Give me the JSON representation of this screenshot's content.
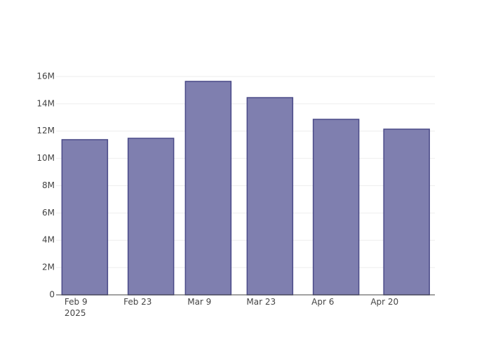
{
  "chart_data": {
    "type": "bar",
    "x": [
      "2025-02-11",
      "2025-02-26",
      "2025-03-11",
      "2025-03-25",
      "2025-04-09",
      "2025-04-25"
    ],
    "values": [
      11370000,
      11470000,
      15640000,
      14450000,
      12860000,
      12140000
    ],
    "color": "#7f7faf",
    "xlim": [
      "2025-02-04T12:00",
      "2025-05-01T10:00"
    ],
    "xticks": [
      {
        "value": "2025-02-09",
        "label": "Feb 9\n2025"
      },
      {
        "value": "2025-02-23",
        "label": "Feb 23"
      },
      {
        "value": "2025-03-09",
        "label": "Mar 9"
      },
      {
        "value": "2025-03-23",
        "label": "Mar 23"
      },
      {
        "value": "2025-04-06",
        "label": "Apr 6"
      },
      {
        "value": "2025-04-20",
        "label": "Apr 20"
      }
    ],
    "ylim": [
      0,
      16460000
    ],
    "yticks": [
      {
        "value": 0,
        "label": "0"
      },
      {
        "value": 2000000,
        "label": "2M"
      },
      {
        "value": 4000000,
        "label": "4M"
      },
      {
        "value": 6000000,
        "label": "6M"
      },
      {
        "value": 8000000,
        "label": "8M"
      },
      {
        "value": 10000000,
        "label": "10M"
      },
      {
        "value": 12000000,
        "label": "12M"
      },
      {
        "value": 14000000,
        "label": "14M"
      },
      {
        "value": 16000000,
        "label": "16M"
      }
    ],
    "grid": true
  }
}
